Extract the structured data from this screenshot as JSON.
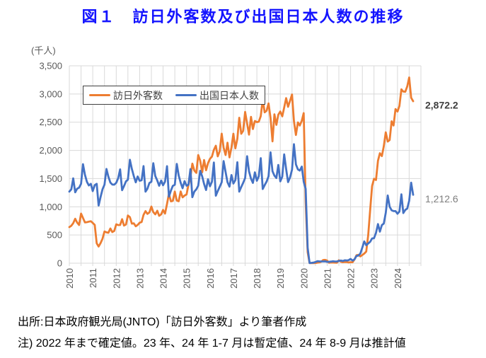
{
  "title": "図１　訪日外客数及び出国日本人数の推移",
  "colors": {
    "title": "#1414ff",
    "grid": "#d9d9d9",
    "axis_text": "#595959",
    "visitors_series": "#ed7d31",
    "departures_series": "#4472c4"
  },
  "footer": {
    "source": "出所:日本政府観光局(JNTO)「訪日外客数」より筆者作成",
    "note": "注) 2022 年まで確定値。23 年、24 年 1-7 月は暫定値、24 年 8-9 月は推計値"
  },
  "chart_data": {
    "type": "line",
    "ylabel": "(千人)",
    "ylim": [
      0,
      3500
    ],
    "y_tick_values": [
      0,
      500,
      1000,
      1500,
      2000,
      2500,
      3000,
      3500
    ],
    "y_tick_labels": [
      "0",
      "500",
      "1,000",
      "1,500",
      "2,000",
      "2,500",
      "3,000",
      "3,500"
    ],
    "x_tick_labels": [
      "2010",
      "2011",
      "2012",
      "2013",
      "2014",
      "2015",
      "2016",
      "2017",
      "2018",
      "2019",
      "2020",
      "2021",
      "2022",
      "2023",
      "2024"
    ],
    "x_unit": "month",
    "x_range": "2010-01 to 2024-09",
    "grid": true,
    "legend_position": "top-left-inside",
    "series": [
      {
        "name": "訪日外客数",
        "color": "#ed7d31",
        "end_label": "2,872.2",
        "end_label_color": "#3f3f3f",
        "end_label_weight": "bold",
        "values": [
          640,
          664,
          710,
          788,
          721,
          677,
          879,
          802,
          722,
          727,
          736,
          744,
          714,
          679,
          353,
          296,
          358,
          434,
          562,
          547,
          539,
          616,
          552,
          572,
          689,
          676,
          678,
          780,
          667,
          686,
          846,
          817,
          701,
          708,
          655,
          679,
          717,
          730,
          857,
          923,
          875,
          901,
          1003,
          906,
          867,
          929,
          840,
          865,
          944,
          880,
          1051,
          1232,
          1097,
          1105,
          1270,
          1110,
          1099,
          1272,
          1168,
          1199,
          1218,
          1387,
          1526,
          1765,
          1642,
          1602,
          1918,
          1817,
          1612,
          1829,
          1648,
          1773,
          1852,
          1891,
          2010,
          2082,
          1894,
          1986,
          2297,
          2050,
          1918,
          2136,
          1875,
          2051,
          2296,
          2036,
          2206,
          2579,
          2295,
          2346,
          2682,
          2478,
          2280,
          2595,
          2378,
          2521,
          2501,
          2509,
          2608,
          2901,
          2675,
          2705,
          2832,
          2578,
          2160,
          2641,
          2452,
          2633,
          2689,
          2604,
          2760,
          2927,
          2773,
          2880,
          2991,
          2520,
          2273,
          2497,
          2441,
          2526,
          2661,
          1085,
          194,
          3,
          2,
          3,
          4,
          9,
          14,
          27,
          57,
          59,
          47,
          7,
          12,
          11,
          10,
          9,
          51,
          26,
          18,
          22,
          21,
          12,
          18,
          17,
          66,
          140,
          147,
          120,
          145,
          170,
          207,
          499,
          935,
          1370,
          1497,
          1475,
          1818,
          1949,
          1899,
          2073,
          2321,
          2157,
          2184,
          2517,
          2441,
          2734,
          2688,
          2788,
          3082,
          3043,
          3040,
          3136,
          3293,
          2933,
          2872.2
        ]
      },
      {
        "name": "出国日本人数",
        "color": "#4472c4",
        "end_label": "1,212.6",
        "end_label_color": "#7f7f7f",
        "end_label_weight": "normal",
        "values": [
          1269,
          1310,
          1504,
          1257,
          1321,
          1339,
          1409,
          1756,
          1567,
          1445,
          1379,
          1407,
          1278,
          1384,
          1408,
          1023,
          1175,
          1310,
          1393,
          1671,
          1534,
          1430,
          1395,
          1392,
          1425,
          1506,
          1664,
          1295,
          1367,
          1451,
          1481,
          1834,
          1671,
          1546,
          1434,
          1537,
          1461,
          1470,
          1721,
          1268,
          1321,
          1423,
          1444,
          1772,
          1546,
          1466,
          1374,
          1465,
          1383,
          1447,
          1720,
          1180,
          1287,
          1371,
          1390,
          1761,
          1555,
          1425,
          1330,
          1455,
          1374,
          1393,
          1668,
          1171,
          1269,
          1310,
          1374,
          1638,
          1540,
          1404,
          1298,
          1488,
          1364,
          1445,
          1787,
          1197,
          1279,
          1355,
          1435,
          1810,
          1616,
          1435,
          1357,
          1563,
          1412,
          1474,
          1790,
          1270,
          1351,
          1424,
          1509,
          1897,
          1629,
          1499,
          1424,
          1611,
          1462,
          1540,
          1863,
          1316,
          1384,
          1448,
          1540,
          1966,
          1629,
          1553,
          1510,
          1743,
          1452,
          1534,
          1930,
          1667,
          1438,
          1521,
          1659,
          2110,
          1751,
          1663,
          1642,
          1712,
          1446,
          1317,
          272,
          4,
          6,
          10,
          20,
          37,
          32,
          31,
          31,
          34,
          24,
          25,
          29,
          35,
          30,
          31,
          40,
          46,
          39,
          51,
          48,
          54,
          75,
          47,
          68,
          128,
          134,
          172,
          278,
          386,
          319,
          350,
          379,
          439,
          443,
          538,
          694,
          560,
          676,
          703,
          892,
          1201,
          1001,
          938,
          925,
          923,
          877,
          914,
          1220,
          889,
          944,
          970,
          1107,
          1428,
          1212.6
        ]
      }
    ]
  }
}
